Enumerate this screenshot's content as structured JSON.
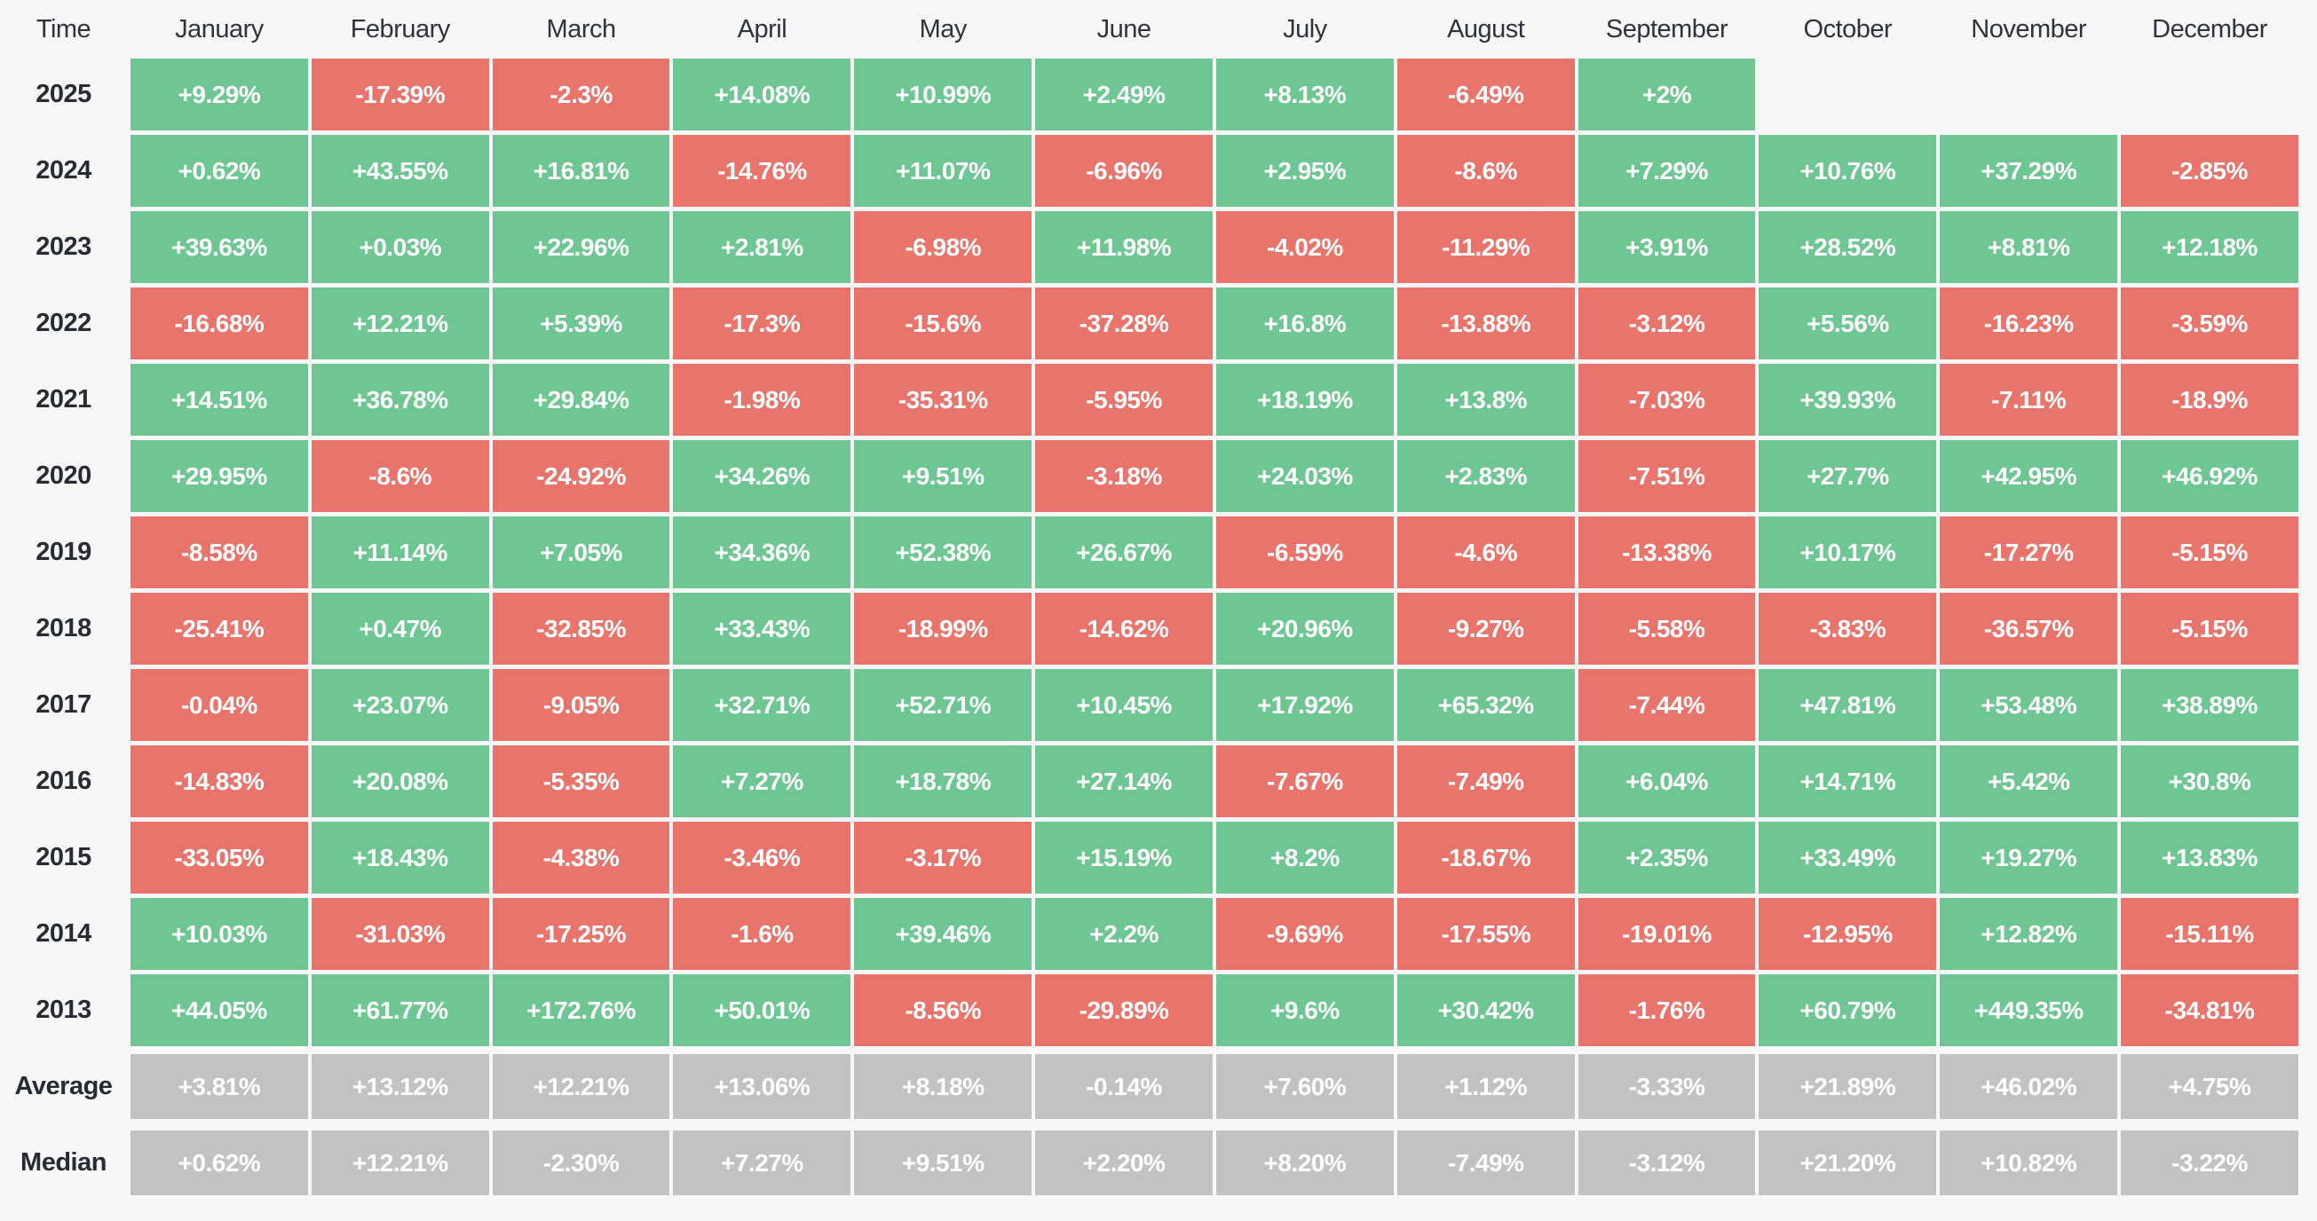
{
  "table": {
    "corner_label": "Time"
  },
  "colors": {
    "positive": "#6ec692",
    "negative": "#e8746b",
    "summary": "#c2c2c3",
    "background": "#f7f7f8",
    "label_text": "#272b33",
    "cell_text": "#ffffff"
  },
  "chart_data": {
    "type": "heatmap",
    "corner_label": "Time",
    "legend_position": "none",
    "grid": false,
    "columns": [
      "January",
      "February",
      "March",
      "April",
      "May",
      "June",
      "July",
      "August",
      "September",
      "October",
      "November",
      "December"
    ],
    "rows": [
      {
        "label": "2025",
        "kind": "year",
        "display": [
          "+9.29%",
          "-17.39%",
          "-2.3%",
          "+14.08%",
          "+10.99%",
          "+2.49%",
          "+8.13%",
          "-6.49%",
          "+2%",
          null,
          null,
          null
        ],
        "values": [
          9.29,
          -17.39,
          -2.3,
          14.08,
          10.99,
          2.49,
          8.13,
          -6.49,
          2,
          null,
          null,
          null
        ]
      },
      {
        "label": "2024",
        "kind": "year",
        "display": [
          "+0.62%",
          "+43.55%",
          "+16.81%",
          "-14.76%",
          "+11.07%",
          "-6.96%",
          "+2.95%",
          "-8.6%",
          "+7.29%",
          "+10.76%",
          "+37.29%",
          "-2.85%"
        ],
        "values": [
          0.62,
          43.55,
          16.81,
          -14.76,
          11.07,
          -6.96,
          2.95,
          -8.6,
          7.29,
          10.76,
          37.29,
          -2.85
        ]
      },
      {
        "label": "2023",
        "kind": "year",
        "display": [
          "+39.63%",
          "+0.03%",
          "+22.96%",
          "+2.81%",
          "-6.98%",
          "+11.98%",
          "-4.02%",
          "-11.29%",
          "+3.91%",
          "+28.52%",
          "+8.81%",
          "+12.18%"
        ],
        "values": [
          39.63,
          0.03,
          22.96,
          2.81,
          -6.98,
          11.98,
          -4.02,
          -11.29,
          3.91,
          28.52,
          8.81,
          12.18
        ]
      },
      {
        "label": "2022",
        "kind": "year",
        "display": [
          "-16.68%",
          "+12.21%",
          "+5.39%",
          "-17.3%",
          "-15.6%",
          "-37.28%",
          "+16.8%",
          "-13.88%",
          "-3.12%",
          "+5.56%",
          "-16.23%",
          "-3.59%"
        ],
        "values": [
          -16.68,
          12.21,
          5.39,
          -17.3,
          -15.6,
          -37.28,
          16.8,
          -13.88,
          -3.12,
          5.56,
          -16.23,
          -3.59
        ]
      },
      {
        "label": "2021",
        "kind": "year",
        "display": [
          "+14.51%",
          "+36.78%",
          "+29.84%",
          "-1.98%",
          "-35.31%",
          "-5.95%",
          "+18.19%",
          "+13.8%",
          "-7.03%",
          "+39.93%",
          "-7.11%",
          "-18.9%"
        ],
        "values": [
          14.51,
          36.78,
          29.84,
          -1.98,
          -35.31,
          -5.95,
          18.19,
          13.8,
          -7.03,
          39.93,
          -7.11,
          -18.9
        ]
      },
      {
        "label": "2020",
        "kind": "year",
        "display": [
          "+29.95%",
          "-8.6%",
          "-24.92%",
          "+34.26%",
          "+9.51%",
          "-3.18%",
          "+24.03%",
          "+2.83%",
          "-7.51%",
          "+27.7%",
          "+42.95%",
          "+46.92%"
        ],
        "values": [
          29.95,
          -8.6,
          -24.92,
          34.26,
          9.51,
          -3.18,
          24.03,
          2.83,
          -7.51,
          27.7,
          42.95,
          46.92
        ]
      },
      {
        "label": "2019",
        "kind": "year",
        "display": [
          "-8.58%",
          "+11.14%",
          "+7.05%",
          "+34.36%",
          "+52.38%",
          "+26.67%",
          "-6.59%",
          "-4.6%",
          "-13.38%",
          "+10.17%",
          "-17.27%",
          "-5.15%"
        ],
        "values": [
          -8.58,
          11.14,
          7.05,
          34.36,
          52.38,
          26.67,
          -6.59,
          -4.6,
          -13.38,
          10.17,
          -17.27,
          -5.15
        ]
      },
      {
        "label": "2018",
        "kind": "year",
        "display": [
          "-25.41%",
          "+0.47%",
          "-32.85%",
          "+33.43%",
          "-18.99%",
          "-14.62%",
          "+20.96%",
          "-9.27%",
          "-5.58%",
          "-3.83%",
          "-36.57%",
          "-5.15%"
        ],
        "values": [
          -25.41,
          0.47,
          -32.85,
          33.43,
          -18.99,
          -14.62,
          20.96,
          -9.27,
          -5.58,
          -3.83,
          -36.57,
          -5.15
        ]
      },
      {
        "label": "2017",
        "kind": "year",
        "display": [
          "-0.04%",
          "+23.07%",
          "-9.05%",
          "+32.71%",
          "+52.71%",
          "+10.45%",
          "+17.92%",
          "+65.32%",
          "-7.44%",
          "+47.81%",
          "+53.48%",
          "+38.89%"
        ],
        "values": [
          -0.04,
          23.07,
          -9.05,
          32.71,
          52.71,
          10.45,
          17.92,
          65.32,
          -7.44,
          47.81,
          53.48,
          38.89
        ]
      },
      {
        "label": "2016",
        "kind": "year",
        "display": [
          "-14.83%",
          "+20.08%",
          "-5.35%",
          "+7.27%",
          "+18.78%",
          "+27.14%",
          "-7.67%",
          "-7.49%",
          "+6.04%",
          "+14.71%",
          "+5.42%",
          "+30.8%"
        ],
        "values": [
          -14.83,
          20.08,
          -5.35,
          7.27,
          18.78,
          27.14,
          -7.67,
          -7.49,
          6.04,
          14.71,
          5.42,
          30.8
        ]
      },
      {
        "label": "2015",
        "kind": "year",
        "display": [
          "-33.05%",
          "+18.43%",
          "-4.38%",
          "-3.46%",
          "-3.17%",
          "+15.19%",
          "+8.2%",
          "-18.67%",
          "+2.35%",
          "+33.49%",
          "+19.27%",
          "+13.83%"
        ],
        "values": [
          -33.05,
          18.43,
          -4.38,
          -3.46,
          -3.17,
          15.19,
          8.2,
          -18.67,
          2.35,
          33.49,
          19.27,
          13.83
        ]
      },
      {
        "label": "2014",
        "kind": "year",
        "display": [
          "+10.03%",
          "-31.03%",
          "-17.25%",
          "-1.6%",
          "+39.46%",
          "+2.2%",
          "-9.69%",
          "-17.55%",
          "-19.01%",
          "-12.95%",
          "+12.82%",
          "-15.11%"
        ],
        "values": [
          10.03,
          -31.03,
          -17.25,
          -1.6,
          39.46,
          2.2,
          -9.69,
          -17.55,
          -19.01,
          -12.95,
          12.82,
          -15.11
        ]
      },
      {
        "label": "2013",
        "kind": "year",
        "display": [
          "+44.05%",
          "+61.77%",
          "+172.76%",
          "+50.01%",
          "-8.56%",
          "-29.89%",
          "+9.6%",
          "+30.42%",
          "-1.76%",
          "+60.79%",
          "+449.35%",
          "-34.81%"
        ],
        "values": [
          44.05,
          61.77,
          172.76,
          50.01,
          -8.56,
          -29.89,
          9.6,
          30.42,
          -1.76,
          60.79,
          449.35,
          -34.81
        ]
      },
      {
        "label": "Average",
        "kind": "summary",
        "display": [
          "+3.81%",
          "+13.12%",
          "+12.21%",
          "+13.06%",
          "+8.18%",
          "-0.14%",
          "+7.60%",
          "+1.12%",
          "-3.33%",
          "+21.89%",
          "+46.02%",
          "+4.75%"
        ],
        "values": [
          3.81,
          13.12,
          12.21,
          13.06,
          8.18,
          -0.14,
          7.6,
          1.12,
          -3.33,
          21.89,
          46.02,
          4.75
        ]
      },
      {
        "label": "Median",
        "kind": "summary",
        "display": [
          "+0.62%",
          "+12.21%",
          "-2.30%",
          "+7.27%",
          "+9.51%",
          "+2.20%",
          "+8.20%",
          "-7.49%",
          "-3.12%",
          "+21.20%",
          "+10.82%",
          "-3.22%"
        ],
        "values": [
          0.62,
          12.21,
          -2.3,
          7.27,
          9.51,
          2.2,
          8.2,
          -7.49,
          -3.12,
          21.2,
          10.82,
          -3.22
        ]
      }
    ]
  }
}
